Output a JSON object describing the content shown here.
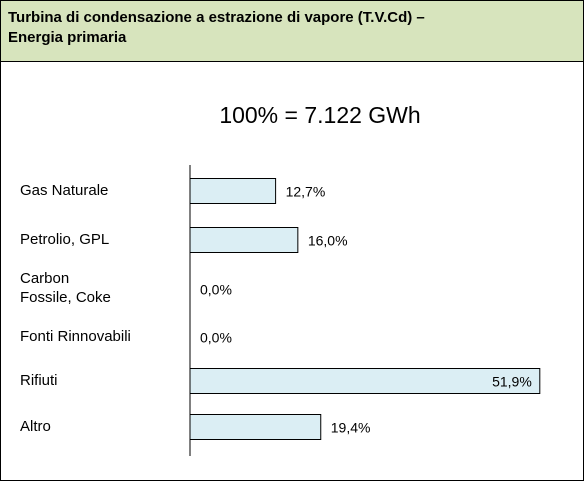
{
  "chart_data": {
    "type": "bar",
    "orientation": "horizontal",
    "title": "Turbina di condensazione a estrazione di vapore (T.V.Cd) – Energia primaria",
    "subtitle": "100% = 7.122 GWh",
    "categories": [
      "Gas Naturale",
      "Petrolio, GPL",
      "Carbon Fossile, Coke",
      "Fonti Rinnovabili",
      "Rifiuti",
      "Altro"
    ],
    "values": [
      12.7,
      16.0,
      0.0,
      0.0,
      51.9,
      19.4
    ],
    "value_labels": [
      "12,7%",
      "16,0%",
      "0,0%",
      "0,0%",
      "51,9%",
      "19,4%"
    ],
    "color": "#dbeef4",
    "header_color": "#d7e4bd"
  }
}
